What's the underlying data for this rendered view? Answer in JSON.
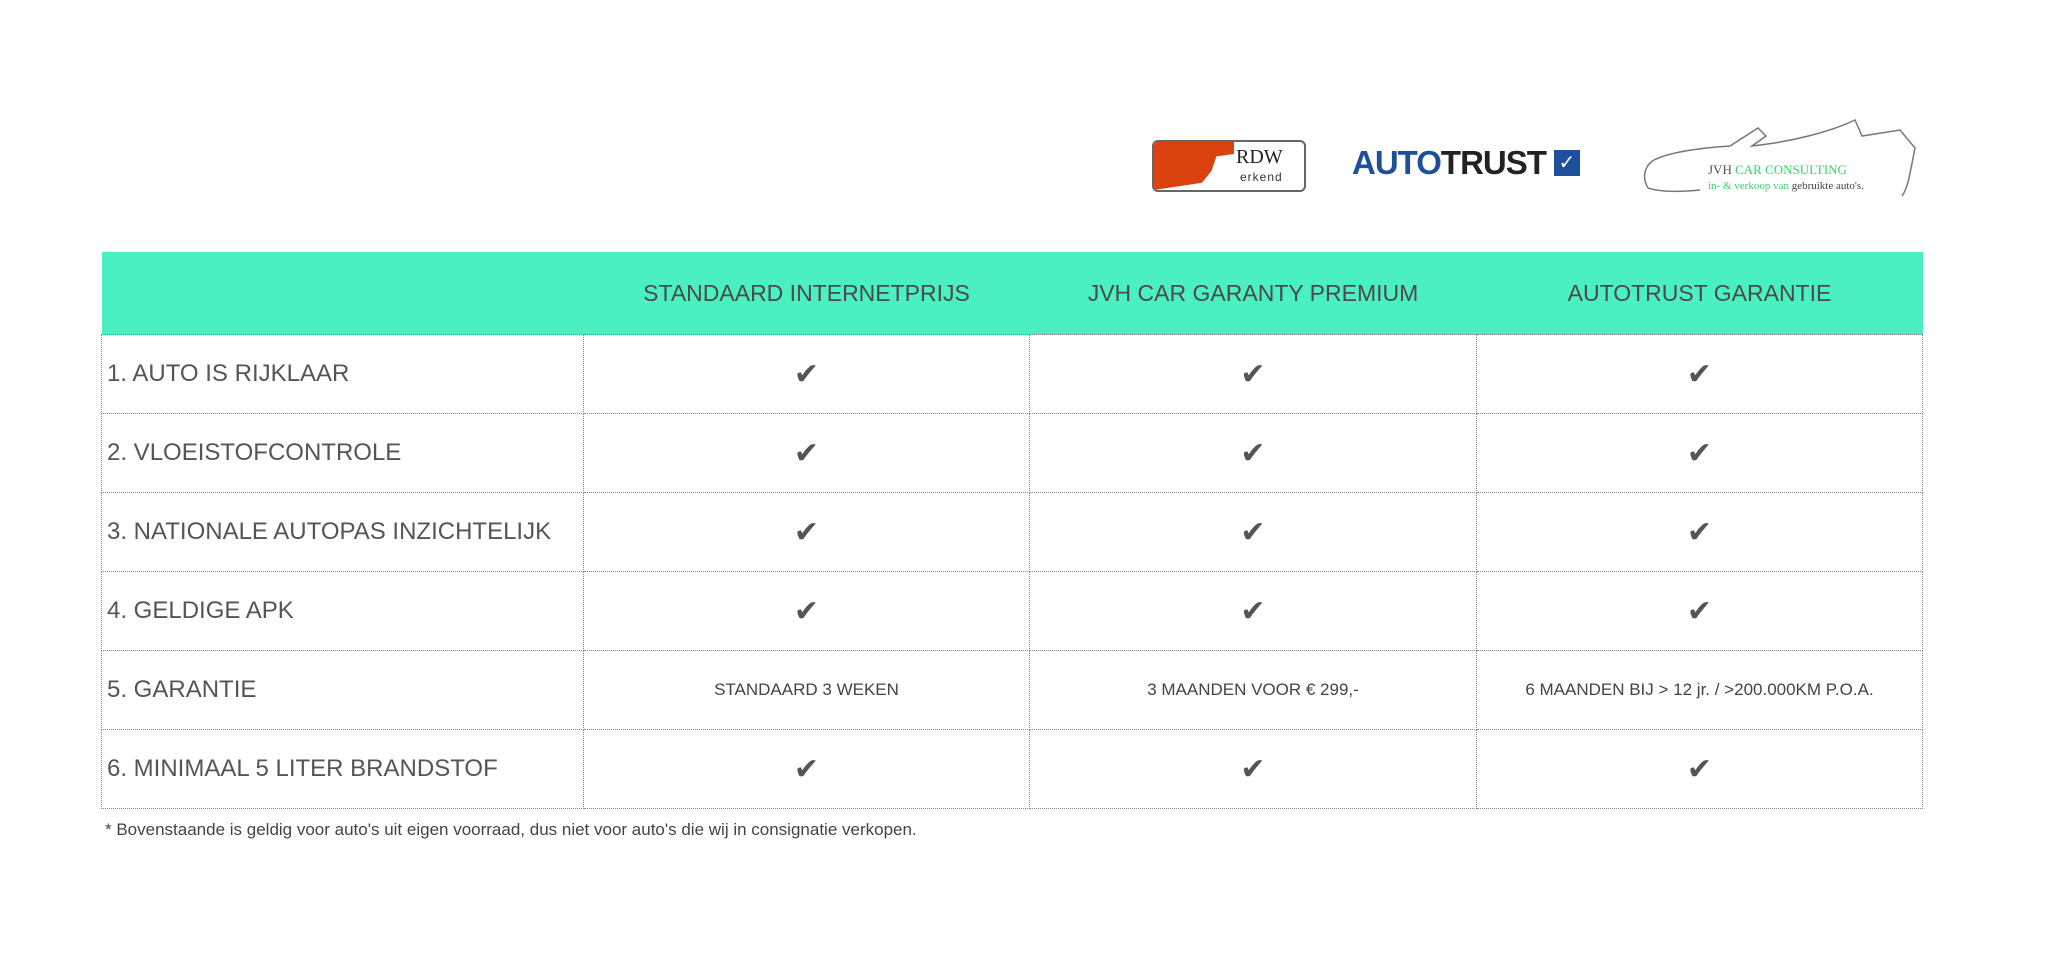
{
  "logos": {
    "rdw": {
      "title": "RDW",
      "subtitle": "erkend"
    },
    "autotrust": {
      "part1": "AUTO",
      "part2": "TRUST",
      "check": "✓"
    },
    "jvh": {
      "line1_a": "JVH ",
      "line1_b": "CAR CONSULTING",
      "line2_a": "in- & verkoop van ",
      "line2_b": "gebruikte auto's."
    }
  },
  "colors": {
    "header_bg": "#4af0c0",
    "rdw_orange": "#d9420f",
    "autotrust_blue": "#1e4f9c",
    "jvh_green": "#3ecf6a"
  },
  "table": {
    "headers": [
      "",
      "STANDAARD INTERNETPRIJS",
      "JVH CAR GARANTY PREMIUM",
      "AUTOTRUST GARANTIE"
    ],
    "rows": [
      {
        "label": "1. AUTO IS RIJKLAAR",
        "cells": [
          "✔",
          "✔",
          "✔"
        ]
      },
      {
        "label": "2. VLOEISTOFCONTROLE",
        "cells": [
          "✔",
          "✔",
          "✔"
        ]
      },
      {
        "label": "3. NATIONALE AUTOPAS INZICHTELIJK",
        "cells": [
          "✔",
          "✔",
          "✔"
        ]
      },
      {
        "label": "4. GELDIGE APK",
        "cells": [
          "✔",
          "✔",
          "✔"
        ]
      },
      {
        "label": "5. GARANTIE",
        "cells": [
          "STANDAARD 3 WEKEN",
          "3 MAANDEN VOOR € 299,-",
          "6 MAANDEN BIJ > 12 jr. / >200.000KM P.O.A."
        ]
      },
      {
        "label": "6. MINIMAAL 5 LITER BRANDSTOF",
        "cells": [
          "✔",
          "✔",
          "✔"
        ]
      }
    ]
  },
  "footnote": "* Bovenstaande is geldig voor auto's uit eigen voorraad, dus niet voor auto's die wij in consignatie verkopen."
}
